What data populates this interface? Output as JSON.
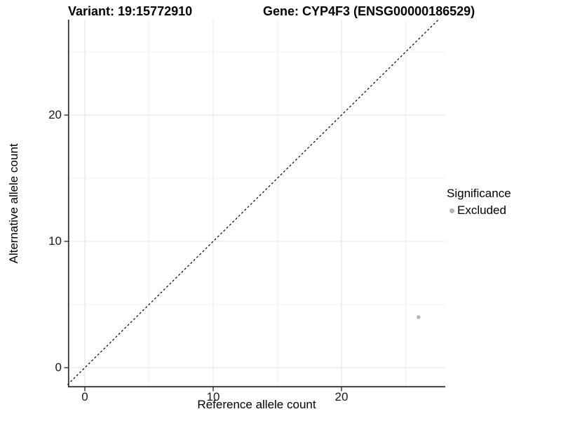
{
  "chart_data": {
    "type": "scatter",
    "titles": {
      "left": "Variant: 19:15772910",
      "right": "Gene: CYP4F3 (ENSG00000186529)"
    },
    "xlabel": "Reference allele count",
    "ylabel": "Alternative allele count",
    "x_ticks": [
      0,
      10,
      20
    ],
    "y_ticks": [
      0,
      10,
      20
    ],
    "x_minor_gridlines": [
      5,
      15,
      25
    ],
    "y_minor_gridlines": [
      5,
      15,
      25
    ],
    "xlim": [
      -1.35,
      28.0
    ],
    "ylim": [
      -1.35,
      27.55
    ],
    "grid": true,
    "identity_line": {
      "equation": "y = x",
      "style": "dashed",
      "color": "#000000"
    },
    "series": [
      {
        "name": "Excluded",
        "color": "#b3b3b3",
        "points": [
          {
            "x": 26,
            "y": 4
          }
        ]
      }
    ],
    "legend": {
      "title": "Significance",
      "position": "right",
      "entries": [
        {
          "label": "Excluded",
          "color": "#b3b3b3",
          "marker": "circle"
        }
      ]
    },
    "colors": {
      "axis_line": "#333333",
      "major_grid": "#e3e3e3",
      "minor_grid": "#f0f0f0",
      "tick_mark": "#333333"
    }
  }
}
